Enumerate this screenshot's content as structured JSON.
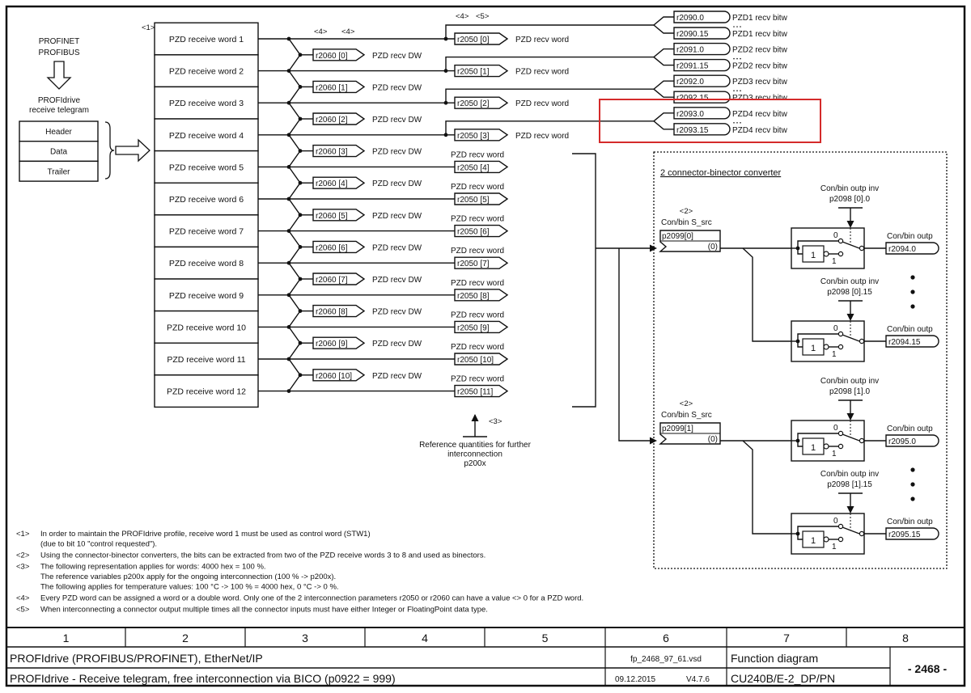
{
  "left": {
    "network": [
      "PROFINET",
      "PROFIBUS"
    ],
    "telegram_title": [
      "PROFIdrive",
      "receive telegram"
    ],
    "telegram_parts": [
      "Header",
      "Data",
      "Trailer"
    ]
  },
  "receive_words": {
    "note_tag": "<1>",
    "words": [
      "PZD receive word 1",
      "PZD receive word 2",
      "PZD receive word 3",
      "PZD receive word 4",
      "PZD receive word 5",
      "PZD receive word 6",
      "PZD receive word 7",
      "PZD receive word 8",
      "PZD receive word 9",
      "PZD receive word 10",
      "PZD receive word 11",
      "PZD receive word 12"
    ]
  },
  "tags": {
    "dw_tags": [
      "<4>",
      "<4>"
    ],
    "word_tags": [
      "<4>",
      "<5>"
    ]
  },
  "dw_outputs": [
    {
      "param": "r2060 [0]",
      "label": "PZD recv DW"
    },
    {
      "param": "r2060 [1]",
      "label": "PZD recv DW"
    },
    {
      "param": "r2060 [2]",
      "label": "PZD recv DW"
    },
    {
      "param": "r2060 [3]",
      "label": "PZD recv DW"
    },
    {
      "param": "r2060 [4]",
      "label": "PZD recv DW"
    },
    {
      "param": "r2060 [5]",
      "label": "PZD recv DW"
    },
    {
      "param": "r2060 [6]",
      "label": "PZD recv DW"
    },
    {
      "param": "r2060 [7]",
      "label": "PZD recv DW"
    },
    {
      "param": "r2060 [8]",
      "label": "PZD recv DW"
    },
    {
      "param": "r2060 [9]",
      "label": "PZD recv DW"
    },
    {
      "param": "r2060 [10]",
      "label": "PZD recv DW"
    }
  ],
  "word_outputs": [
    {
      "param": "r2050 [0]",
      "label": "PZD recv word"
    },
    {
      "param": "r2050 [1]",
      "label": "PZD recv word"
    },
    {
      "param": "r2050 [2]",
      "label": "PZD recv word"
    },
    {
      "param": "r2050 [3]",
      "label": "PZD recv word"
    },
    {
      "param": "r2050 [4]",
      "label": "PZD recv word"
    },
    {
      "param": "r2050 [5]",
      "label": "PZD recv word"
    },
    {
      "param": "r2050 [6]",
      "label": "PZD recv word"
    },
    {
      "param": "r2050 [7]",
      "label": "PZD recv word"
    },
    {
      "param": "r2050 [8]",
      "label": "PZD recv word"
    },
    {
      "param": "r2050 [9]",
      "label": "PZD recv word"
    },
    {
      "param": "r2050 [10]",
      "label": "PZD recv word"
    },
    {
      "param": "r2050 [11]",
      "label": "PZD recv word"
    }
  ],
  "bitwise_outputs": [
    {
      "first": "r2090.0",
      "first_label": "PZD1 recv bitw",
      "last": "r2090.15",
      "last_label": "PZD1 recv bitw"
    },
    {
      "first": "r2091.0",
      "first_label": "PZD2 recv bitw",
      "last": "r2091.15",
      "last_label": "PZD2 recv bitw"
    },
    {
      "first": "r2092.0",
      "first_label": "PZD3 recv bitw",
      "last": "r2092.15",
      "last_label": "PZD3 recv bitw"
    },
    {
      "first": "r2093.0",
      "first_label": "PZD4 recv bitw",
      "last": "r2093.15",
      "last_label": "PZD4 recv bitw"
    }
  ],
  "highlight_color": "#d42a2a",
  "reference": {
    "tag": "<3>",
    "text": [
      "Reference quantities for further",
      "interconnection",
      "p200x"
    ]
  },
  "converter": {
    "title": "2 connector-binector converter",
    "blocks": [
      {
        "tag": "<2>",
        "src_label": "Con/bin S_src",
        "src_param": "p2099[0]",
        "src_value": "(0)",
        "switches": [
          {
            "inv_label": "Con/bin outp inv",
            "inv_param": "p2098 [0].0",
            "in0": "0",
            "in1": "1",
            "gate": "1",
            "out_label": "Con/bin outp",
            "out_param": "r2094.0"
          },
          {
            "inv_label": "Con/bin outp inv",
            "inv_param": "p2098 [0].15",
            "in0": "0",
            "in1": "1",
            "gate": "1",
            "out_label": "Con/bin outp",
            "out_param": "r2094.15"
          }
        ]
      },
      {
        "tag": "<2>",
        "src_label": "Con/bin S_src",
        "src_param": "p2099[1]",
        "src_value": "(0)",
        "switches": [
          {
            "inv_label": "Con/bin outp inv",
            "inv_param": "p2098 [1].0",
            "in0": "0",
            "in1": "1",
            "gate": "1",
            "out_label": "Con/bin outp",
            "out_param": "r2095.0"
          },
          {
            "inv_label": "Con/bin outp inv",
            "inv_param": "p2098 [1].15",
            "in0": "0",
            "in1": "1",
            "gate": "1",
            "out_label": "Con/bin outp",
            "out_param": "r2095.15"
          }
        ]
      }
    ]
  },
  "notes": [
    {
      "tag": "<1>",
      "lines": [
        "In order to maintain the PROFIdrive profile, receive word 1 must be used as control word (STW1)",
        "(due to bit 10 \"control requested\")."
      ]
    },
    {
      "tag": "<2>",
      "lines": [
        "Using the connector-binector converters, the bits can be extracted from two of the PZD receive words 3 to 8 and used as binectors."
      ]
    },
    {
      "tag": "<3>",
      "lines": [
        "The following representation applies for words: 4000 hex = 100 %.",
        "The reference variables p200x apply for the ongoing interconnection (100 % -> p200x).",
        "The following applies for temperature values:   100 °C -> 100 % = 4000 hex, 0 °C -> 0 %."
      ]
    },
    {
      "tag": "<4>",
      "lines": [
        "Every PZD word can be assigned a word or a double word. Only one of the 2 interconnection parameters r2050 or r2060 can have a value <> 0 for a PZD word."
      ]
    },
    {
      "tag": "<5>",
      "lines": [
        "When interconnecting a connector output multiple times all the connector inputs must have either Integer or FloatingPoint data type."
      ]
    }
  ],
  "footer": {
    "columns": [
      "1",
      "2",
      "3",
      "4",
      "5",
      "6",
      "7",
      "8"
    ],
    "title": "PROFIdrive (PROFIBUS/PROFINET), EtherNet/IP",
    "subtitle": "PROFIdrive - Receive telegram, free interconnection via BICO (p0922 = 999)",
    "file": "fp_2468_97_61.vsd",
    "date": "09.12.2015",
    "version": "V4.7.6",
    "type": "Function diagram",
    "device": "CU240B/E-2_DP/PN",
    "page": "- 2468 -"
  }
}
